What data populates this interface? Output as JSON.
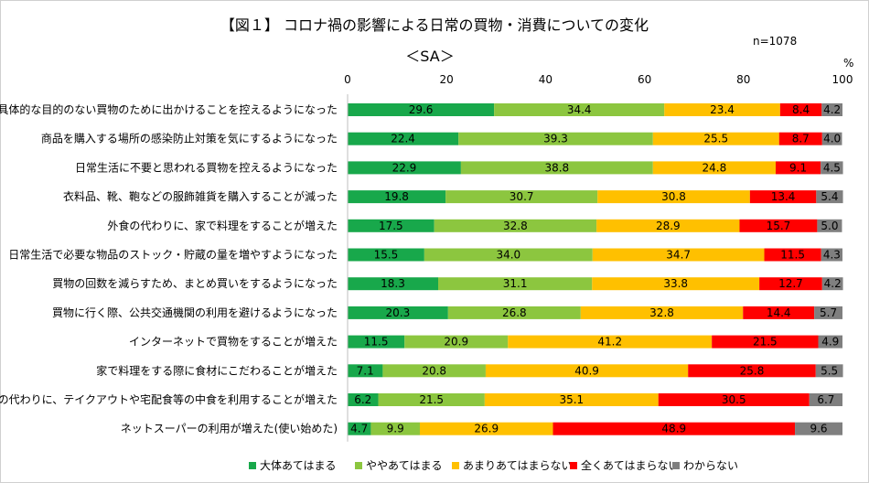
{
  "chart_data": {
    "type": "bar",
    "orientation": "horizontal",
    "stacked": true,
    "title": "【図１】 コロナ禍の影響による日常の買物・消費についての変化",
    "subtitle": "＜SA＞",
    "note": "n=1078",
    "unit": "%",
    "xlim": [
      0,
      100
    ],
    "xticks": [
      0,
      20,
      40,
      60,
      80,
      100
    ],
    "legend_position": "bottom",
    "grid": false,
    "categories": [
      "具体的な目的のない買物のために出かけることを控えるようになった",
      "商品を購入する場所の感染防止対策を気にするようになった",
      "日常生活に不要と思われる買物を控えるようになった",
      "衣料品、靴、鞄などの服飾雑貨を購入することが減った",
      "外食の代わりに、家で料理をすることが増えた",
      "日常生活で必要な物品のストック・貯蔵の量を増やすようになった",
      "買物の回数を減らすため、まとめ買いをするようになった",
      "買物に行く際、公共交通機関の利用を避けるようになった",
      "インターネットで買物をすることが増えた",
      "家で料理をする際に食材にこだわることが増えた",
      "外食の代わりに、テイクアウトや宅配食等の中食を利用することが増えた",
      "ネットスーパーの利用が増えた(使い始めた)"
    ],
    "series": [
      {
        "name": "大体あてはまる",
        "color": "#18a84b",
        "values": [
          29.6,
          22.4,
          22.9,
          19.8,
          17.5,
          15.5,
          18.3,
          20.3,
          11.5,
          7.1,
          6.2,
          4.7
        ]
      },
      {
        "name": "ややあてはまる",
        "color": "#8cc63f",
        "values": [
          34.4,
          39.3,
          38.8,
          30.7,
          32.8,
          34.0,
          31.1,
          26.8,
          20.9,
          20.8,
          21.5,
          9.9
        ]
      },
      {
        "name": "あまりあてはまらない",
        "color": "#ffc000",
        "values": [
          23.4,
          25.5,
          24.8,
          30.8,
          28.9,
          34.7,
          33.8,
          32.8,
          41.2,
          40.9,
          35.1,
          26.9
        ]
      },
      {
        "name": "全くあてはまらない",
        "color": "#ff0000",
        "values": [
          8.4,
          8.7,
          9.1,
          13.4,
          15.7,
          11.5,
          12.7,
          14.4,
          21.5,
          25.8,
          30.5,
          48.9
        ]
      },
      {
        "name": "わからない",
        "color": "#7f7f7f",
        "values": [
          4.2,
          4.0,
          4.5,
          5.4,
          5.0,
          4.3,
          4.2,
          5.7,
          4.9,
          5.5,
          6.7,
          9.6
        ]
      }
    ]
  }
}
